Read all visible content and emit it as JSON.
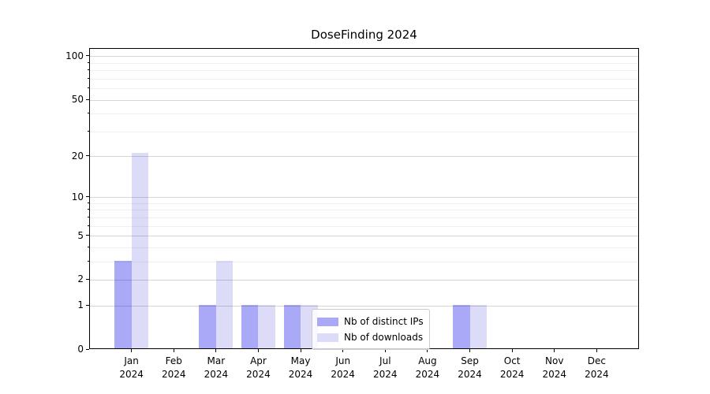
{
  "figure": {
    "title": "DoseFinding 2024"
  },
  "chart_data": {
    "type": "bar",
    "title": "DoseFinding 2024",
    "xlabel": "",
    "ylabel": "",
    "categories": [
      "Jan 2024",
      "Feb 2024",
      "Mar 2024",
      "Apr 2024",
      "May 2024",
      "Jun 2024",
      "Jul 2024",
      "Aug 2024",
      "Sep 2024",
      "Oct 2024",
      "Nov 2024",
      "Dec 2024"
    ],
    "series": [
      {
        "name": "Nb of distinct IPs",
        "color": "#a9a9f7",
        "values": [
          3,
          0,
          1,
          1,
          1,
          0,
          0,
          0,
          1,
          0,
          0,
          0
        ]
      },
      {
        "name": "Nb of downloads",
        "color": "#dcdcf9",
        "values": [
          21,
          0,
          3,
          1,
          1,
          0,
          0,
          0,
          1,
          0,
          0,
          0
        ]
      }
    ],
    "yscale": "log10(1+x)",
    "ylim": [
      0,
      116
    ],
    "yticks": [
      0,
      1,
      2,
      5,
      10,
      20,
      50,
      100
    ],
    "minor_yticks": [
      3,
      4,
      6,
      7,
      8,
      9,
      30,
      40,
      60,
      70,
      80,
      90
    ],
    "grid": true,
    "legend_position": "lower center"
  },
  "colors": {
    "bar_distinct_ips": "#a9a9f7",
    "bar_downloads": "#dcdcf9",
    "grid_major": "#d6d6d6",
    "grid_minor": "#efefef",
    "spine": "#000000",
    "background": "#ffffff",
    "text": "#000000",
    "legend_border": "#cccccc"
  }
}
